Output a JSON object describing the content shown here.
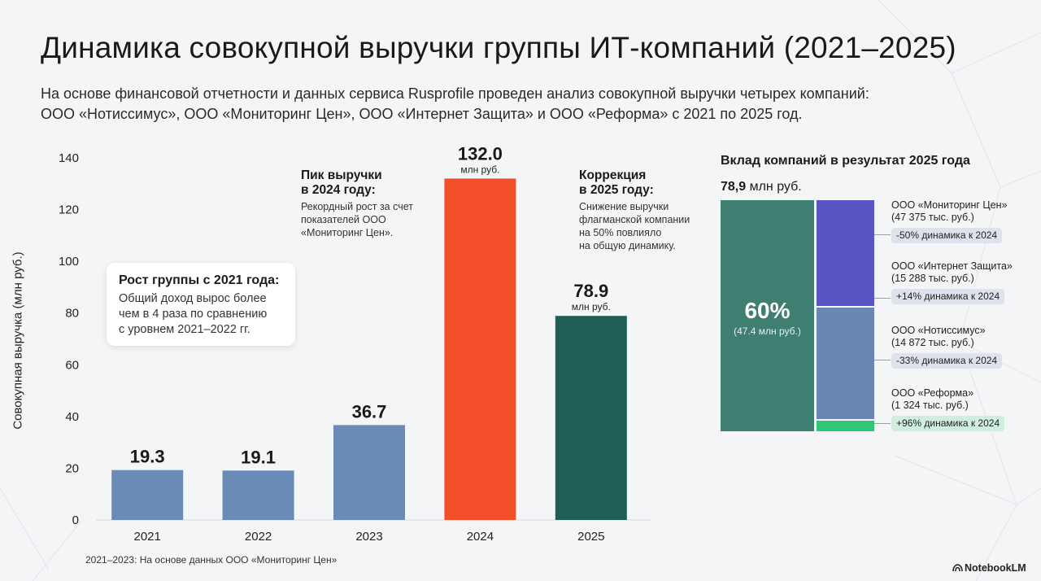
{
  "title": "Динамика совокупной выручки группы ИТ-компаний (2021–2025)",
  "subtitle": [
    "На основе финансовой отчетности и данных сервиса Rusprofile проведен анализ совокупной выручки четырех компаний:",
    "ООО «Нотиссимус», ООО «Мониторинг Цен», ООО «Интернет Защита» и ООО «Реформа» с 2021 по 2025 год."
  ],
  "colors": {
    "bar_default": "#6a8bb8",
    "bar_peak": "#f24f2a",
    "bar_correction": "#1e5e57",
    "grid": "#d6d9de"
  },
  "chart_data": [
    {
      "type": "bar",
      "title": "",
      "xlabel": "",
      "ylabel": "Совокупная выручка (млн руб.)",
      "categories": [
        "2021",
        "2022",
        "2023",
        "2024",
        "2025"
      ],
      "values": [
        19.3,
        19.1,
        36.7,
        132.0,
        78.9
      ],
      "value_labels": [
        "19.3",
        "19.1",
        "36.7",
        "132.0",
        "78.9"
      ],
      "unit_labels": [
        "",
        "",
        "",
        "млн руб.",
        "млн руб."
      ],
      "bar_colors": [
        "#6a8bb8",
        "#6a8bb8",
        "#6a8bb8",
        "#f24f2a",
        "#1e5e57"
      ],
      "ylim": [
        0,
        140
      ],
      "yticks": [
        0,
        20,
        40,
        60,
        80,
        100,
        120,
        140
      ],
      "grid": false
    },
    {
      "type": "stacked_bar",
      "title": "Вклад компаний в результат 2025 года",
      "total_label": "78,9",
      "total_unit": "млн руб.",
      "segments": [
        {
          "name": "ООО «Мониторинг Цен»",
          "value_label": "(47 375 тыс. руб.)",
          "value": 47375,
          "change": "-50% динамика к 2024",
          "color": "#5a55c5"
        },
        {
          "name": "ООО «Интернет Защита»",
          "value_label": "(15 288 тыс. руб.)",
          "value": 15288,
          "change": "+14% динамика к 2024",
          "color": "#6a86b4"
        },
        {
          "name": "ООО «Нотиссимус»",
          "value_label": "(14 872 тыс. руб.)",
          "value": 14872,
          "change": "-33% динамика к 2024",
          "color": "#6a86b4"
        },
        {
          "name": "ООО «Реформа»",
          "value_label": "(1 324 тыс. руб.)",
          "value": 1324,
          "change": "+96% динамика к 2024",
          "color": "#2fc777"
        }
      ],
      "main_share": {
        "percent": "60%",
        "sub": "(47.4 млн руб.)",
        "color": "#3f7f72"
      }
    }
  ],
  "callouts": {
    "growth": {
      "heading": "Рост группы с 2021 года:",
      "body": [
        "Общий доход вырос более",
        "чем в 4 раза по сравнению",
        "с уровнем 2021–2022 гг."
      ]
    },
    "peak": {
      "heading": [
        "Пик выручки",
        "в 2024 году:"
      ],
      "body": [
        "Рекордный рост за счет",
        "показателей ООО",
        "«Мониторинг Цен»."
      ]
    },
    "correction": {
      "heading": [
        "Коррекция",
        "в 2025 году:"
      ],
      "body": [
        "Снижение выручки",
        "флагманской компании",
        "на 50% повлияло",
        "на общую динамику."
      ]
    }
  },
  "footnote": "2021–2023: На основе данных ООО «Мониторинг Цен»",
  "brand": "NotebookLM"
}
